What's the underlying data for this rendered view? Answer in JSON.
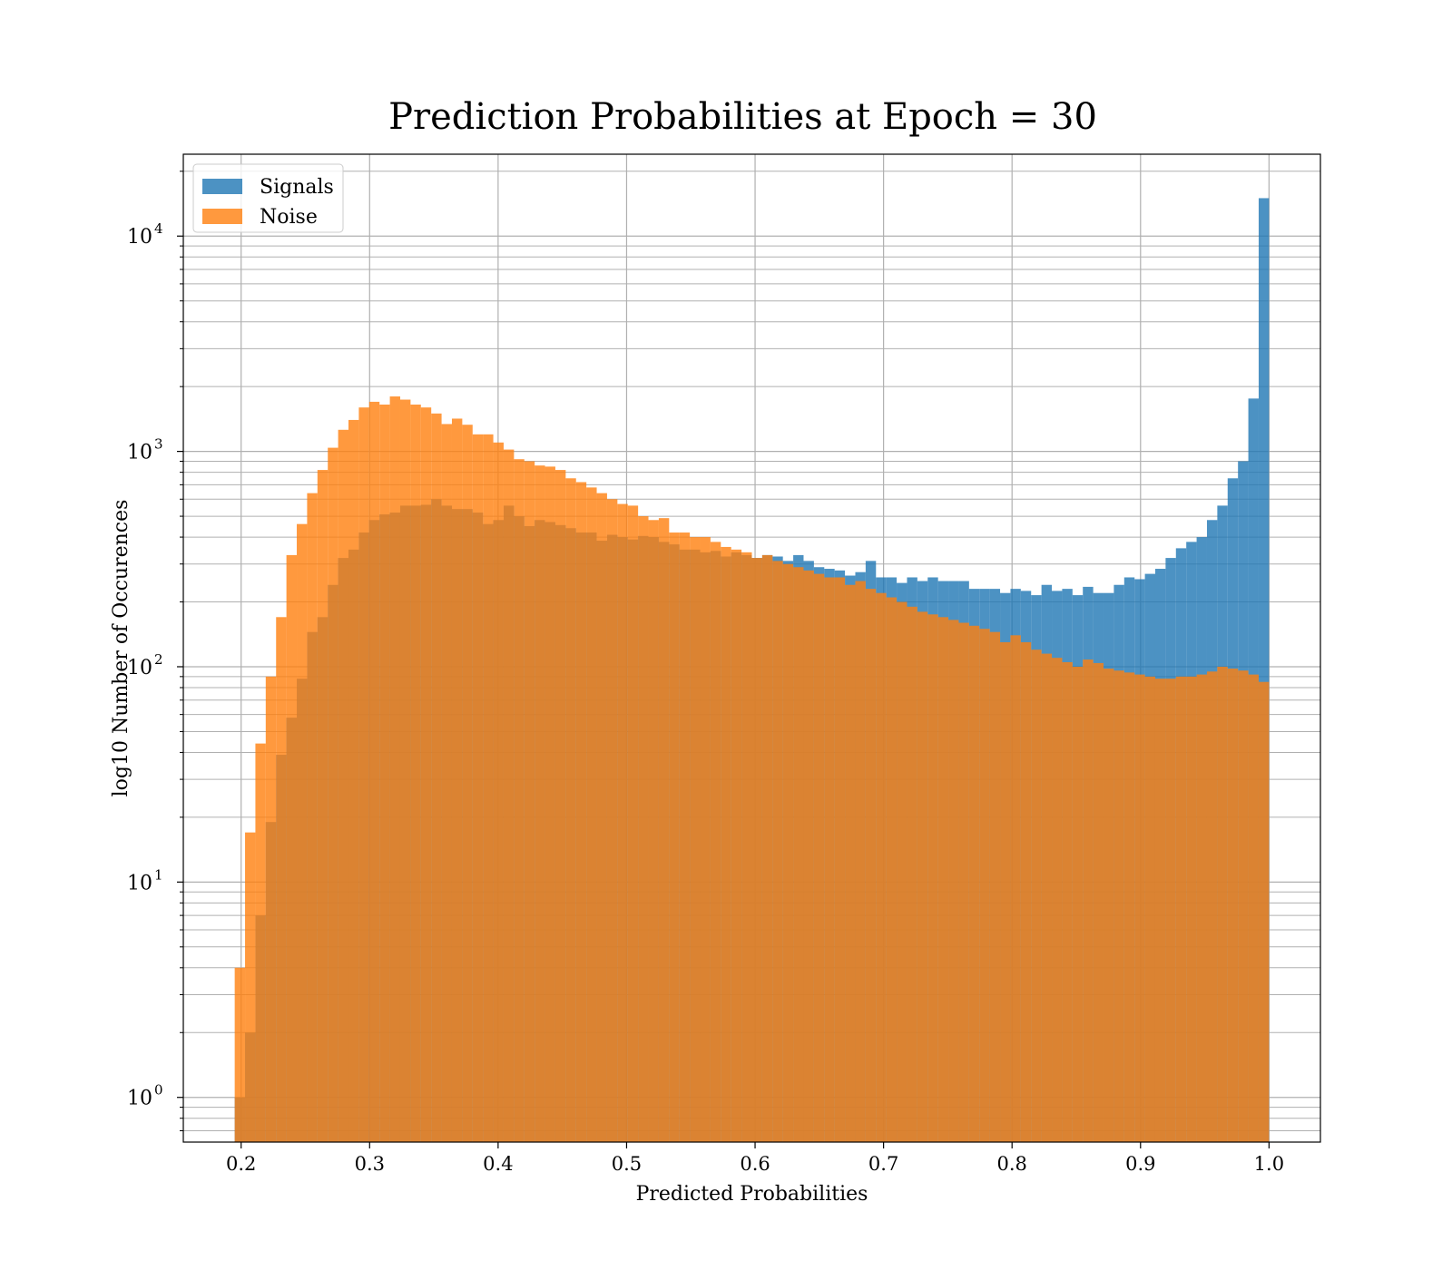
{
  "chart_data": {
    "type": "bar",
    "title": "Prediction Probabilities at Epoch = 30",
    "xlabel": "Predicted Probabilities",
    "ylabel": "log10 Number of Occurences",
    "yscale": "log",
    "xlim": [
      0.155,
      1.04
    ],
    "ylim": [
      0.62,
      24000
    ],
    "grid": true,
    "legend_position": "top-left",
    "x_ticks": [
      0.2,
      0.3,
      0.4,
      0.5,
      0.6,
      0.7,
      0.8,
      0.9,
      1.0
    ],
    "x_tick_labels": [
      "0.2",
      "0.3",
      "0.4",
      "0.5",
      "0.6",
      "0.7",
      "0.8",
      "0.9",
      "1.0"
    ],
    "y_ticks": [
      1,
      10,
      100,
      1000,
      10000
    ],
    "y_tick_labels": [
      {
        "base": "10",
        "exp": "0"
      },
      {
        "base": "10",
        "exp": "1"
      },
      {
        "base": "10",
        "exp": "2"
      },
      {
        "base": "10",
        "exp": "3"
      },
      {
        "base": "10",
        "exp": "4"
      }
    ],
    "bin_range": [
      0.195,
      1.0
    ],
    "bin_count": 100,
    "series": [
      {
        "name": "Signals",
        "color": "#1f77b4",
        "values": [
          1,
          2,
          7,
          19,
          39,
          58,
          88,
          145,
          170,
          240,
          320,
          350,
          420,
          480,
          510,
          520,
          560,
          560,
          565,
          600,
          560,
          540,
          540,
          520,
          460,
          480,
          560,
          500,
          450,
          480,
          470,
          455,
          440,
          420,
          420,
          385,
          410,
          400,
          390,
          405,
          400,
          380,
          370,
          350,
          350,
          340,
          345,
          325,
          340,
          330,
          320,
          330,
          325,
          310,
          330,
          310,
          290,
          285,
          280,
          265,
          275,
          310,
          260,
          260,
          245,
          260,
          250,
          260,
          250,
          250,
          250,
          230,
          230,
          230,
          220,
          230,
          225,
          215,
          240,
          225,
          230,
          215,
          235,
          220,
          220,
          240,
          260,
          255,
          270,
          285,
          320,
          355,
          380,
          400,
          480,
          560,
          750,
          900,
          1760,
          15000
        ]
      },
      {
        "name": "Noise",
        "color": "#ff7f0e",
        "values": [
          4,
          17,
          44,
          90,
          170,
          330,
          460,
          640,
          820,
          1040,
          1260,
          1400,
          1600,
          1700,
          1650,
          1800,
          1740,
          1650,
          1600,
          1500,
          1340,
          1420,
          1330,
          1200,
          1200,
          1100,
          1020,
          920,
          900,
          860,
          850,
          820,
          750,
          720,
          680,
          640,
          600,
          570,
          560,
          500,
          480,
          490,
          420,
          420,
          400,
          400,
          380,
          360,
          350,
          340,
          320,
          330,
          310,
          300,
          290,
          280,
          270,
          260,
          260,
          240,
          250,
          230,
          220,
          210,
          200,
          190,
          180,
          175,
          170,
          165,
          160,
          155,
          150,
          145,
          130,
          140,
          130,
          120,
          115,
          110,
          105,
          100,
          108,
          104,
          98,
          96,
          94,
          92,
          90,
          88,
          88,
          90,
          90,
          92,
          95,
          100,
          98,
          96,
          92,
          85
        ]
      }
    ]
  }
}
